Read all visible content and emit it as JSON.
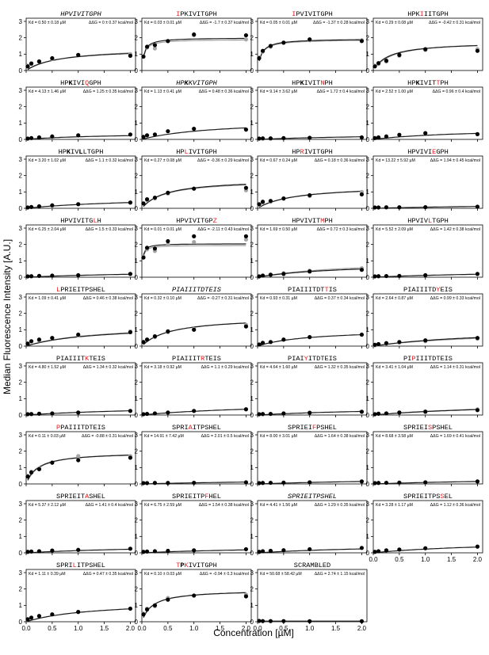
{
  "figure": {
    "ylabel": "Median Fluorescence Intensity [A.U.]",
    "xlabel": "Concentration [µM]",
    "kd_prefix": "Kd =",
    "dg_prefix": "ΔΔG =",
    "x_ticks": [
      "0.0",
      "0.5",
      "1.0",
      "1.5",
      "2.0"
    ],
    "y_ticks": [
      "0",
      "1",
      "2",
      "3"
    ],
    "colors": {
      "highlight": "#e41a1c",
      "fit_black": "#1a1a1a",
      "fit_gray": "#9e9e9e",
      "point_gray": "#a6a6a6"
    }
  },
  "chart_data": {
    "type": "scatter",
    "layout": "grid-4-columns",
    "x": [
      0.03,
      0.1,
      0.25,
      0.5,
      1.0,
      2.0
    ],
    "xlim": [
      0,
      2.1
    ],
    "ylim": [
      0,
      3
    ],
    "panels": [
      {
        "title": [
          [
            "HPVIVITGPH",
            0
          ]
        ],
        "italic": true,
        "kd": "0.50 ± 0.18 µM",
        "dg": "0 ± 0.37 kcal/mol",
        "y": [
          0.25,
          0.42,
          0.55,
          0.75,
          0.95,
          0.9
        ],
        "gray_y": [
          0.3,
          0.45,
          0.55,
          0.7,
          0.95,
          1.0
        ],
        "fit": [
          1.35,
          0.6
        ],
        "gray_fit": [
          1.45,
          0.7
        ]
      },
      {
        "title": [
          [
            "I",
            1
          ],
          [
            "PKIVITGPH",
            0
          ]
        ],
        "kd": "0.03 ± 0.01 µM",
        "dg": "-1.7 ± 0.37 kcal/mol",
        "y": [
          0.85,
          1.45,
          1.55,
          1.8,
          2.2,
          2.15
        ],
        "gray_y": [
          0.85,
          1.4,
          1.35,
          1.8,
          2.15,
          1.9
        ],
        "fit": [
          2.0,
          0.04
        ],
        "gray_fit": [
          1.9,
          0.04
        ]
      },
      {
        "title": [
          [
            "I",
            1
          ],
          [
            "PVIVITGPH",
            0
          ]
        ],
        "kd": "0.05 ± 0.01 µM",
        "dg": "-1.37 ± 0.28 kcal/mol",
        "y": [
          0.75,
          1.2,
          1.5,
          1.7,
          1.9,
          1.8
        ],
        "gray_y": [
          0.8,
          1.15,
          1.45,
          1.7,
          1.85,
          1.85
        ],
        "fit": [
          1.95,
          0.07
        ],
        "gray_fit": [
          1.9,
          0.07
        ]
      },
      {
        "title": [
          [
            "HPK",
            0
          ],
          [
            "I",
            1
          ],
          [
            "IITGPH",
            0
          ]
        ],
        "kd": "0.29 ± 0.08 µM",
        "dg": "-0.42 ± 0.31 kcal/mol",
        "y": [
          0.25,
          0.45,
          0.6,
          0.95,
          1.3,
          1.2
        ],
        "gray_y": [
          0.3,
          0.4,
          0.55,
          0.9,
          1.25,
          1.3
        ],
        "fit": [
          1.75,
          0.3
        ],
        "gray_fit": [
          1.8,
          0.35
        ]
      },
      {
        "title": [
          [
            "HP",
            0
          ],
          [
            "K",
            2
          ],
          [
            "IVI",
            0
          ],
          [
            "Q",
            1
          ],
          [
            "GPH",
            0
          ]
        ],
        "kd": "4.13 ± 1.46 µM",
        "dg": "1.25 ± 0.35 kcal/mol",
        "y": [
          0.05,
          0.08,
          0.12,
          0.18,
          0.25,
          0.3
        ],
        "fit": [
          0.4,
          1.5
        ]
      },
      {
        "title": [
          [
            "HP",
            0
          ],
          [
            "K",
            2
          ],
          [
            "KVITGPH",
            0
          ]
        ],
        "italic": true,
        "kd": "1.13 ± 0.41 µM",
        "dg": "0.48 ± 0.36 kcal/mol",
        "y": [
          0.15,
          0.25,
          0.3,
          0.5,
          0.65,
          0.6
        ],
        "fit": [
          1.2,
          1.4
        ]
      },
      {
        "title": [
          [
            "HP",
            0
          ],
          [
            "K",
            2
          ],
          [
            "IVIT",
            0
          ],
          [
            "N",
            1
          ],
          [
            "PH",
            0
          ]
        ],
        "kd": "9.14 ± 3.62 µM",
        "dg": "1.72 ± 0.4 kcal/mol",
        "y": [
          0.05,
          0.06,
          0.06,
          0.08,
          0.1,
          0.12
        ],
        "fit": [
          0.4,
          3.0
        ]
      },
      {
        "title": [
          [
            "HP",
            0
          ],
          [
            "K",
            2
          ],
          [
            "IVIT",
            0
          ],
          [
            "T",
            1
          ],
          [
            "PH",
            0
          ]
        ],
        "kd": "2.52 ± 1.00 µM",
        "dg": "0.96 ± 0.4 kcal/mol",
        "y": [
          0.08,
          0.12,
          0.18,
          0.28,
          0.38,
          0.32
        ],
        "fit": [
          0.7,
          1.8
        ]
      },
      {
        "title": [
          [
            "HP",
            0
          ],
          [
            "K",
            2
          ],
          [
            "IV",
            0
          ],
          [
            "L",
            2
          ],
          [
            "LTGPH",
            0
          ]
        ],
        "kd": "3.20 ± 1.02 µM",
        "dg": "1.1 ± 0.32 kcal/mol",
        "y": [
          0.05,
          0.08,
          0.12,
          0.18,
          0.25,
          0.35
        ],
        "fit": [
          0.7,
          2.0
        ]
      },
      {
        "title": [
          [
            "HP",
            0
          ],
          [
            "L",
            1
          ],
          [
            "IVITGPH",
            0
          ]
        ],
        "kd": "0.27 ± 0.08 µM",
        "dg": "-0.36 ± 0.29 kcal/mol",
        "y": [
          0.3,
          0.55,
          0.65,
          0.95,
          1.2,
          1.25
        ],
        "gray_y": [
          0.3,
          0.5,
          0.6,
          0.9,
          1.2,
          1.1
        ],
        "fit": [
          1.8,
          0.45
        ],
        "gray_fit": [
          1.75,
          0.45
        ]
      },
      {
        "title": [
          [
            "HP",
            0
          ],
          [
            "R",
            1
          ],
          [
            "IVITGPH",
            0
          ]
        ],
        "kd": "0.67 ± 0.24 µM",
        "dg": "0.18 ± 0.36 kcal/mol",
        "y": [
          0.25,
          0.4,
          0.45,
          0.6,
          0.8,
          0.85
        ],
        "gray_y": [
          0.2,
          0.35,
          0.4,
          0.6,
          0.75,
          1.0
        ],
        "fit": [
          1.4,
          0.7
        ],
        "gray_fit": [
          1.45,
          0.75
        ]
      },
      {
        "title": [
          [
            "HPVIVI",
            0
          ],
          [
            "E",
            1
          ],
          [
            "GPH",
            0
          ]
        ],
        "kd": "13.22 ± 5.92 µM",
        "dg": "1.94 ± 0.45 kcal/mol",
        "y": [
          0.05,
          0.05,
          0.06,
          0.06,
          0.07,
          0.1
        ],
        "fit": [
          0.4,
          5.0
        ]
      },
      {
        "title": [
          [
            "HPVIVITG",
            0
          ],
          [
            "L",
            1
          ],
          [
            "H",
            0
          ]
        ],
        "kd": "6.25 ± 2.04 µM",
        "dg": "1.5 ± 0.33 kcal/mol",
        "y": [
          0.05,
          0.06,
          0.08,
          0.1,
          0.12,
          0.2
        ],
        "fit": [
          0.5,
          3.5
        ]
      },
      {
        "title": [
          [
            "HPVIVITGP",
            0
          ],
          [
            "Z",
            1
          ]
        ],
        "kd": "0.01 ± 0.01 µM",
        "dg": "-2.11 ± 0.43 kcal/mol",
        "y": [
          1.2,
          1.8,
          1.75,
          2.2,
          2.5,
          2.5
        ],
        "gray_y": [
          1.25,
          1.7,
          1.6,
          2.0,
          2.15,
          2.3
        ],
        "fit": [
          2.05,
          0.015
        ],
        "gray_fit": [
          1.95,
          0.015
        ]
      },
      {
        "title": [
          [
            "HPVIVIT",
            0
          ],
          [
            "M",
            1
          ],
          [
            "PH",
            0
          ]
        ],
        "kd": "1.69 ± 0.50 µM",
        "dg": "0.72 ± 0.3 kcal/mol",
        "y": [
          0.05,
          0.1,
          0.15,
          0.2,
          0.35,
          0.45
        ],
        "gray_y": [
          0.05,
          0.1,
          0.15,
          0.25,
          0.4,
          0.55
        ],
        "fit": [
          0.9,
          1.6
        ],
        "gray_fit": [
          1.1,
          1.8
        ]
      },
      {
        "title": [
          [
            "HPVIV",
            0
          ],
          [
            "L",
            1
          ],
          [
            "TGPH",
            0
          ]
        ],
        "kd": "5.52 ± 2.09 µM",
        "dg": "1.42 ± 0.38 kcal/mol",
        "y": [
          0.05,
          0.06,
          0.07,
          0.08,
          0.12,
          0.2
        ],
        "fit": [
          0.5,
          3.5
        ]
      },
      {
        "title": [
          [
            "L",
            1
          ],
          [
            "PRIEITPSHEL",
            0
          ]
        ],
        "kd": "1.09 ± 0.41 µM",
        "dg": "0.46 ± 0.38 kcal/mol",
        "y": [
          0.15,
          0.3,
          0.4,
          0.5,
          0.7,
          0.85
        ],
        "gray_y": [
          0.15,
          0.3,
          0.35,
          0.5,
          0.65,
          0.9
        ],
        "fit": [
          1.3,
          1.3
        ],
        "gray_fit": [
          1.35,
          1.3
        ]
      },
      {
        "title": [
          [
            "PIAIIITDTEIS",
            0
          ]
        ],
        "italic": true,
        "kd": "0.32 ± 0.10 µM",
        "dg": "-0.27 ± 0.31 kcal/mol",
        "y": [
          0.25,
          0.4,
          0.6,
          0.9,
          1.0,
          1.2
        ],
        "gray_y": [
          0.25,
          0.4,
          0.55,
          0.85,
          1.05,
          1.3
        ],
        "fit": [
          1.8,
          0.55
        ],
        "gray_fit": [
          1.8,
          0.55
        ]
      },
      {
        "title": [
          [
            "PIAIIITDT",
            0
          ],
          [
            "T",
            1
          ],
          [
            "IS",
            0
          ]
        ],
        "kd": "0.93 ± 0.31 µM",
        "dg": "0.37 ± 0.34 kcal/mol",
        "y": [
          0.1,
          0.2,
          0.25,
          0.4,
          0.55,
          0.7
        ],
        "fit": [
          1.05,
          1.0
        ]
      },
      {
        "title": [
          [
            "PIAIIITD",
            0
          ],
          [
            "Y",
            1
          ],
          [
            "EIS",
            0
          ]
        ],
        "kd": "2.64 ± 0.87 µM",
        "dg": "0.99 ± 0.33 kcal/mol",
        "y": [
          0.08,
          0.12,
          0.18,
          0.25,
          0.35,
          0.5
        ],
        "gray_y": [
          0.05,
          0.1,
          0.15,
          0.22,
          0.3,
          0.45
        ],
        "fit": [
          1.1,
          2.2
        ],
        "gray_fit": [
          1.0,
          2.2
        ]
      },
      {
        "title": [
          [
            "PIAIIIT",
            0
          ],
          [
            "K",
            1
          ],
          [
            "TEIS",
            0
          ]
        ],
        "kd": "4.80 ± 1.52 µM",
        "dg": "1.34 ± 0.32 kcal/mol",
        "y": [
          0.05,
          0.06,
          0.08,
          0.1,
          0.15,
          0.25
        ],
        "fit": [
          0.65,
          3.0
        ]
      },
      {
        "title": [
          [
            "PIAIIIT",
            0
          ],
          [
            "R",
            1
          ],
          [
            "TEIS",
            0
          ]
        ],
        "kd": "3.18 ± 0.92 µM",
        "dg": "1.1 ± 0.29 kcal/mol",
        "y": [
          0.05,
          0.07,
          0.1,
          0.15,
          0.25,
          0.35
        ],
        "fit": [
          0.8,
          2.5
        ]
      },
      {
        "title": [
          [
            "PIAI",
            0
          ],
          [
            "Y",
            1
          ],
          [
            "ITDTEIS",
            0
          ]
        ],
        "kd": "4.64 ± 1.60 µM",
        "dg": "1.32 ± 0.35 kcal/mol",
        "y": [
          0.05,
          0.06,
          0.07,
          0.1,
          0.14,
          0.2
        ],
        "fit": [
          0.55,
          3.0
        ]
      },
      {
        "title": [
          [
            "PI",
            0
          ],
          [
            "P",
            1
          ],
          [
            "IIITDTEIS",
            0
          ]
        ],
        "kd": "3.41 ± 1.04 µM",
        "dg": "1.14 ± 0.31 kcal/mol",
        "y": [
          0.05,
          0.08,
          0.1,
          0.15,
          0.2,
          0.3
        ],
        "gray_y": [
          0.05,
          0.08,
          0.1,
          0.15,
          0.22,
          0.35
        ],
        "fit": [
          0.8,
          2.8
        ],
        "gray_fit": [
          0.85,
          2.8
        ]
      },
      {
        "title": [
          [
            "P",
            1
          ],
          [
            "PAIIITDTEIS",
            0
          ]
        ],
        "kd": "0.11 ± 0.03 µM",
        "dg": "-0.88 ± 0.31 kcal/mol",
        "y": [
          0.45,
          0.7,
          0.9,
          1.3,
          1.45,
          1.6
        ],
        "gray_y": [
          0.5,
          0.75,
          0.95,
          1.3,
          1.7,
          1.7
        ],
        "fit": [
          1.95,
          0.22
        ],
        "gray_fit": [
          2.0,
          0.25
        ]
      },
      {
        "title": [
          [
            "SPRI",
            0
          ],
          [
            "A",
            1
          ],
          [
            "ITPSHEL",
            0
          ]
        ],
        "kd": "14.91 ± 7.42 µM",
        "dg": "2.01 ± 0.5 kcal/mol",
        "y": [
          0.05,
          0.05,
          0.06,
          0.06,
          0.07,
          0.1
        ],
        "fit": [
          0.4,
          5.0
        ]
      },
      {
        "title": [
          [
            "SPRIEI",
            0
          ],
          [
            "F",
            1
          ],
          [
            "PSHEL",
            0
          ]
        ],
        "kd": "8.00 ± 3.01 µM",
        "dg": "1.64 ± 0.38 kcal/mol",
        "y": [
          0.05,
          0.06,
          0.07,
          0.08,
          0.1,
          0.15
        ],
        "fit": [
          0.45,
          4.0
        ]
      },
      {
        "title": [
          [
            "SPRIEI",
            0
          ],
          [
            "S",
            1
          ],
          [
            "PSHEL",
            0
          ]
        ],
        "kd": "8.68 ± 3.58 µM",
        "dg": "1.69 ± 0.41 kcal/mol",
        "y": [
          0.05,
          0.06,
          0.07,
          0.08,
          0.1,
          0.15
        ],
        "fit": [
          0.45,
          4.0
        ]
      },
      {
        "title": [
          [
            "SPRIEIT",
            0
          ],
          [
            "A",
            1
          ],
          [
            "SHEL",
            0
          ]
        ],
        "kd": "5.37 ± 2.12 µM",
        "dg": "1.41 ± 0.4 kcal/mol",
        "y": [
          0.06,
          0.08,
          0.1,
          0.14,
          0.18,
          0.25
        ],
        "fit": [
          0.55,
          3.0
        ]
      },
      {
        "title": [
          [
            "SPRIEITP",
            0
          ],
          [
            "F",
            1
          ],
          [
            "HEL",
            0
          ]
        ],
        "kd": "6.75 ± 2.59 µM",
        "dg": "1.54 ± 0.38 kcal/mol",
        "y": [
          0.06,
          0.08,
          0.1,
          0.12,
          0.15,
          0.22
        ],
        "fit": [
          0.5,
          3.5
        ]
      },
      {
        "title": [
          [
            "SPRIEITPSHEL",
            0
          ]
        ],
        "italic": true,
        "kd": "4.41 ± 1.56 µM",
        "dg": "1.29 ± 0.35 kcal/mol",
        "y": [
          0.06,
          0.1,
          0.12,
          0.16,
          0.22,
          0.3
        ],
        "fit": [
          0.6,
          3.0
        ]
      },
      {
        "title": [
          [
            "SPRIEITPS",
            0
          ],
          [
            "S",
            1
          ],
          [
            "EL",
            0
          ]
        ],
        "kd": "3.28 ± 1.17 µM",
        "dg": "1.12 ± 0.36 kcal/mol",
        "y": [
          0.06,
          0.1,
          0.15,
          0.2,
          0.28,
          0.38
        ],
        "fit": [
          0.8,
          2.5
        ]
      },
      {
        "title": [
          [
            "SPRI",
            0
          ],
          [
            "L",
            1
          ],
          [
            "ITPSHEL",
            0
          ]
        ],
        "kd": "1.11 ± 0.39 µM",
        "dg": "0.47 ± 0.35 kcal/mol",
        "y": [
          0.15,
          0.25,
          0.35,
          0.45,
          0.6,
          0.8
        ],
        "fit": [
          1.3,
          1.3
        ]
      },
      {
        "title": [
          [
            "T",
            1
          ],
          [
            "P",
            2
          ],
          [
            "K",
            1
          ],
          [
            "IVITGPH",
            0
          ]
        ],
        "kd": "0.10 ± 0.03 µM",
        "dg": "-0.94 ± 0.3 kcal/mol",
        "y": [
          0.45,
          0.75,
          1.0,
          1.35,
          1.6,
          1.55
        ],
        "gray_y": [
          0.5,
          0.8,
          0.95,
          1.45,
          1.6,
          1.65
        ],
        "fit": [
          1.95,
          0.2
        ],
        "gray_fit": [
          1.95,
          0.2
        ]
      },
      {
        "title": [
          [
            "SCRAMBLED",
            0
          ]
        ],
        "kd": "50.68 ± 58.42 µM",
        "dg": "2.74 ± 1.15 kcal/mol",
        "y": [
          0.05,
          0.04,
          0.04,
          0.04,
          0.03,
          0.03
        ],
        "fit": [
          0.04,
          0.01
        ]
      }
    ]
  }
}
